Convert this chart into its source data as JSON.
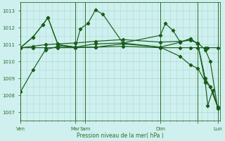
{
  "background_color": "#cff0ee",
  "grid_color": "#aaddd8",
  "line_color": "#1a5c1a",
  "ylim": [
    1006.5,
    1013.5
  ],
  "yticks": [
    1007,
    1008,
    1009,
    1010,
    1011,
    1012,
    1013
  ],
  "xlabel": "Pression niveau de la mer( hPa )",
  "vline_color": "#2d6e2d",
  "xlim": [
    0,
    80
  ],
  "series1_x": [
    0,
    5,
    10,
    15,
    22,
    30,
    41,
    56,
    64,
    68,
    71,
    74,
    76,
    79
  ],
  "series1_y": [
    1008.2,
    1009.5,
    1010.7,
    1010.9,
    1010.85,
    1011.05,
    1011.1,
    1010.85,
    1010.3,
    1009.8,
    1009.6,
    1008.8,
    1008.5,
    1007.3
  ],
  "series2_x": [
    0,
    5,
    10,
    15,
    22,
    30,
    41,
    56,
    64,
    68,
    71,
    74,
    75,
    79
  ],
  "series2_y": [
    1010.82,
    1010.82,
    1010.82,
    1010.82,
    1010.82,
    1010.85,
    1010.9,
    1010.82,
    1010.82,
    1010.82,
    1010.82,
    1010.82,
    1010.82,
    1010.82
  ],
  "series3_x": [
    0,
    5,
    10,
    15,
    22,
    30,
    41,
    56,
    64,
    68,
    71,
    74,
    76,
    79
  ],
  "series3_y": [
    1010.82,
    1010.9,
    1011.0,
    1011.05,
    1011.1,
    1011.2,
    1011.3,
    1011.15,
    1011.2,
    1011.25,
    1011.1,
    1010.7,
    1010.0,
    1007.2
  ],
  "series4_x": [
    0,
    5,
    9,
    11,
    15,
    22,
    24,
    27,
    30,
    33,
    41,
    56,
    58,
    61,
    64,
    68,
    71,
    74,
    75,
    77,
    79
  ],
  "series4_y": [
    1010.82,
    1011.45,
    1012.2,
    1012.6,
    1011.0,
    1010.85,
    1011.95,
    1012.25,
    1013.05,
    1012.8,
    1011.1,
    1011.55,
    1012.25,
    1011.85,
    1011.15,
    1011.35,
    1011.05,
    1008.75,
    1007.4,
    1008.3,
    1007.3
  ],
  "series5_x": [
    0,
    5,
    9,
    11,
    15,
    22,
    30,
    41,
    56,
    64,
    68,
    71,
    74,
    76,
    79
  ],
  "series5_y": [
    1010.82,
    1011.45,
    1012.2,
    1012.6,
    1011.0,
    1010.85,
    1010.85,
    1011.05,
    1010.85,
    1011.15,
    1011.35,
    1011.05,
    1009.0,
    1008.5,
    1007.3
  ],
  "vlines": [
    0,
    22,
    26,
    56,
    71,
    79
  ],
  "xtick_pos": [
    0,
    22,
    26,
    56,
    71,
    79
  ],
  "xtick_labels": [
    "Ven",
    "Mar",
    "Sam",
    "Dim",
    "",
    "Lun"
  ]
}
